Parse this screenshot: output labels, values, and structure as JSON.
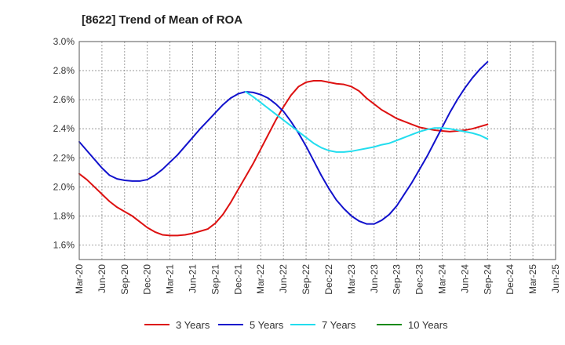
{
  "chart_data": {
    "type": "line",
    "title": "[8622]  Trend of Mean of ROA",
    "xlabel": "",
    "ylabel": "",
    "ylim": [
      1.5,
      3.0
    ],
    "y_ticks": [
      1.6,
      1.8,
      2.0,
      2.2,
      2.4,
      2.6,
      2.8,
      3.0
    ],
    "y_tick_labels": [
      "1.6%",
      "1.8%",
      "2.0%",
      "2.2%",
      "2.4%",
      "2.6%",
      "2.8%",
      "3.0%"
    ],
    "x_ticks": [
      "Mar-20",
      "Jun-20",
      "Sep-20",
      "Dec-20",
      "Mar-21",
      "Jun-21",
      "Sep-21",
      "Dec-21",
      "Mar-22",
      "Jun-22",
      "Sep-22",
      "Dec-22",
      "Mar-23",
      "Jun-23",
      "Sep-23",
      "Dec-23",
      "Mar-24",
      "Jun-24",
      "Sep-24",
      "Dec-24",
      "Mar-25",
      "Jun-25"
    ],
    "grid": true,
    "legend_position": "bottom",
    "series": [
      {
        "name": "3 Years",
        "color": "#dd1111",
        "x_start_index": 0,
        "values": [
          2.09,
          2.05,
          2.0,
          1.95,
          1.9,
          1.86,
          1.83,
          1.8,
          1.76,
          1.72,
          1.69,
          1.67,
          1.665,
          1.665,
          1.67,
          1.68,
          1.695,
          1.71,
          1.75,
          1.81,
          1.89,
          1.98,
          2.07,
          2.16,
          2.26,
          2.36,
          2.46,
          2.55,
          2.63,
          2.69,
          2.72,
          2.73,
          2.73,
          2.72,
          2.71,
          2.705,
          2.69,
          2.66,
          2.61,
          2.57,
          2.53,
          2.5,
          2.47,
          2.45,
          2.43,
          2.41,
          2.4,
          2.39,
          2.385,
          2.38,
          2.385,
          2.39,
          2.4,
          2.415,
          2.43
        ]
      },
      {
        "name": "5 Years",
        "color": "#1111cc",
        "x_start_index": 0,
        "values": [
          2.31,
          2.25,
          2.19,
          2.13,
          2.08,
          2.055,
          2.045,
          2.04,
          2.04,
          2.05,
          2.08,
          2.12,
          2.17,
          2.22,
          2.28,
          2.34,
          2.4,
          2.455,
          2.51,
          2.565,
          2.61,
          2.64,
          2.655,
          2.65,
          2.635,
          2.61,
          2.57,
          2.52,
          2.45,
          2.37,
          2.28,
          2.18,
          2.08,
          1.99,
          1.91,
          1.85,
          1.8,
          1.765,
          1.745,
          1.745,
          1.77,
          1.81,
          1.87,
          1.95,
          2.03,
          2.12,
          2.21,
          2.31,
          2.41,
          2.51,
          2.6,
          2.68,
          2.75,
          2.81,
          2.86
        ]
      },
      {
        "name": "7 Years",
        "color": "#22ddee",
        "x_start_index": 22,
        "values": [
          2.655,
          2.62,
          2.58,
          2.54,
          2.5,
          2.46,
          2.42,
          2.38,
          2.34,
          2.3,
          2.27,
          2.25,
          2.24,
          2.24,
          2.245,
          2.255,
          2.265,
          2.275,
          2.29,
          2.3,
          2.32,
          2.34,
          2.36,
          2.38,
          2.395,
          2.405,
          2.405,
          2.4,
          2.39,
          2.38,
          2.37,
          2.355,
          2.33
        ]
      },
      {
        "name": "10 Years",
        "color": "#1a8a1a",
        "x_start_index": 0,
        "values": []
      }
    ]
  }
}
